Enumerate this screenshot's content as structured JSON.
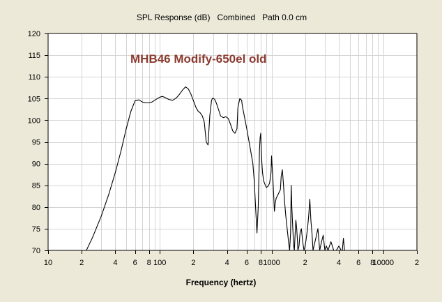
{
  "chart_data": {
    "type": "line",
    "title": "SPL Response (dB)   Combined   Path 0.0 cm",
    "annotation": "MHB46 Modify-650el old",
    "xlabel": "Frequency (hertz)",
    "ylabel": "",
    "xscale": "log",
    "xlim": [
      10,
      20000
    ],
    "ylim": [
      70,
      120
    ],
    "grid": true,
    "legend": "none",
    "colors": {
      "background": "#ece9d8",
      "plot_area": "#ffffff",
      "grid": "#d4d4d4",
      "line": "#000000",
      "annotation": "#8b3a2e"
    },
    "y_ticks": [
      {
        "value": 70,
        "label": "70"
      },
      {
        "value": 75,
        "label": "75"
      },
      {
        "value": 80,
        "label": "80"
      },
      {
        "value": 85,
        "label": "85"
      },
      {
        "value": 90,
        "label": "90"
      },
      {
        "value": 95,
        "label": "95"
      },
      {
        "value": 100,
        "label": "100"
      },
      {
        "value": 105,
        "label": "105"
      },
      {
        "value": 110,
        "label": "110"
      },
      {
        "value": 115,
        "label": "115"
      },
      {
        "value": 120,
        "label": "120"
      }
    ],
    "x_ticks": [
      {
        "value": 10,
        "label": "10"
      },
      {
        "value": 20,
        "label": "2"
      },
      {
        "value": 40,
        "label": "4"
      },
      {
        "value": 60,
        "label": "6"
      },
      {
        "value": 80,
        "label": "8"
      },
      {
        "value": 100,
        "label": "100"
      },
      {
        "value": 200,
        "label": "2"
      },
      {
        "value": 400,
        "label": "4"
      },
      {
        "value": 600,
        "label": "6"
      },
      {
        "value": 800,
        "label": "8"
      },
      {
        "value": 1000,
        "label": "1000"
      },
      {
        "value": 2000,
        "label": "2"
      },
      {
        "value": 4000,
        "label": "4"
      },
      {
        "value": 6000,
        "label": "6"
      },
      {
        "value": 8000,
        "label": "8"
      },
      {
        "value": 10000,
        "label": "10000"
      },
      {
        "value": 20000,
        "label": "2"
      }
    ],
    "series": [
      {
        "x": [
          20,
          22,
          25,
          30,
          35,
          40,
          45,
          50,
          55,
          60,
          65,
          70,
          75,
          80,
          85,
          90,
          95,
          100,
          105,
          110,
          120,
          130,
          140,
          150,
          160,
          170,
          180,
          190,
          200,
          210,
          220,
          230,
          240,
          250,
          260,
          270,
          280,
          290,
          295,
          300,
          310,
          320,
          330,
          340,
          350,
          370,
          390,
          410,
          430,
          450,
          470,
          490,
          500,
          520,
          540,
          550,
          560,
          570,
          580,
          600,
          620,
          650,
          680,
          700,
          720,
          740,
          760,
          780,
          790,
          800,
          810,
          820,
          830,
          850,
          880,
          900,
          930,
          960,
          990,
          1000,
          1020,
          1040,
          1060,
          1080,
          1100,
          1150,
          1200,
          1220,
          1250,
          1280,
          1300,
          1340,
          1380,
          1420,
          1450,
          1480,
          1500,
          1520,
          1550,
          1580,
          1600,
          1620,
          1650,
          1680,
          1700,
          1720,
          1760,
          1800,
          1850,
          1900,
          1950,
          2000,
          2050,
          2100,
          2150,
          2200,
          2250,
          2300,
          2350,
          2400,
          2500,
          2600,
          2700,
          2800,
          2900,
          3000,
          3100,
          3200,
          3400,
          3600,
          3800,
          4000,
          4200,
          4300,
          4400,
          4500,
          4600
        ],
        "values": [
          68,
          70,
          73,
          78,
          83,
          88,
          93,
          98,
          102,
          104.5,
          104.7,
          104.2,
          104,
          104,
          104.2,
          104.6,
          105,
          105.3,
          105.5,
          105.3,
          104.8,
          104.6,
          105.1,
          106,
          107,
          107.7,
          107.2,
          106,
          104.5,
          103,
          102.1,
          101.7,
          101,
          99.6,
          95,
          94.3,
          101,
          104.5,
          105,
          105.1,
          104.8,
          104,
          103,
          102,
          101,
          100.6,
          100.8,
          100.4,
          99,
          97.5,
          97,
          98,
          103,
          105,
          104.6,
          103,
          102,
          101,
          100,
          98,
          96,
          93,
          90,
          86,
          80,
          74,
          80,
          93,
          96,
          97,
          93,
          90,
          88,
          86,
          85,
          84.5,
          84.8,
          85.5,
          88,
          91.8,
          88,
          84,
          79,
          81,
          82,
          83,
          84,
          87,
          88.6,
          85,
          82,
          78,
          75,
          72,
          70,
          74,
          85,
          80,
          75,
          71,
          70,
          73,
          77,
          75,
          73,
          70,
          71,
          74,
          75,
          72,
          70,
          71,
          73,
          75,
          78,
          81.8,
          77,
          74,
          70,
          71,
          73,
          75,
          70,
          72,
          73.5,
          70,
          71,
          70,
          72,
          70,
          70,
          71,
          70,
          70,
          72.8,
          70,
          70
        ]
      }
    ]
  }
}
